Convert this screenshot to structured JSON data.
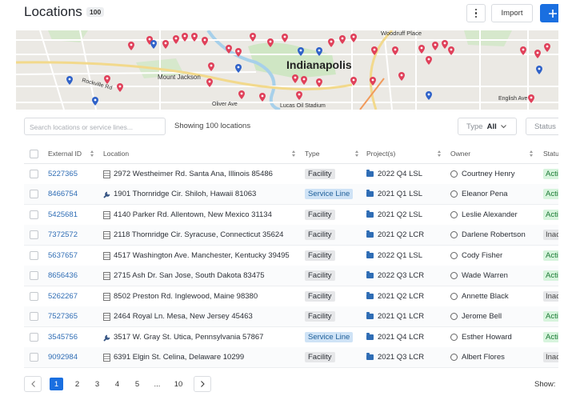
{
  "header": {
    "title": "Locations",
    "count": "100",
    "import_button": "Import"
  },
  "map": {
    "labels": {
      "city": "Indianapolis",
      "mount_jackson": "Mount Jackson",
      "rockville": "Rockville Rd",
      "woodruff": "Woodruff Place",
      "oliver": "Oliver Ave",
      "stadium": "Lucas Oil Stadium",
      "english": "English Ave"
    }
  },
  "toolbar": {
    "search_placeholder": "Search locations or service lines...",
    "summary": "Showing 100 locations",
    "type_filter": {
      "label": "Type",
      "value": "All"
    },
    "status_filter": {
      "label": "Status"
    }
  },
  "table": {
    "columns": [
      "External ID",
      "Location",
      "Type",
      "Project(s)",
      "Owner",
      "Status"
    ],
    "rows": [
      [
        "5227365",
        "2972 Westheimer Rd. Santa Ana, Illinois 85486",
        "Facility",
        "2022 Q4 LSL",
        "Courtney Henry",
        "Active"
      ],
      [
        "8466754",
        "1901 Thornridge Cir. Shiloh, Hawaii 81063",
        "Service Line",
        "2021 Q1 LSL",
        "Eleanor Pena",
        "Active"
      ],
      [
        "5425681",
        "4140 Parker Rd. Allentown, New Mexico 31134",
        "Facility",
        "2021 Q2 LSL",
        "Leslie Alexander",
        "Active"
      ],
      [
        "7372572",
        "2118 Thornridge Cir. Syracuse, Connecticut 35624",
        "Facility",
        "2021 Q2 LCR",
        "Darlene Robertson",
        "Inactive"
      ],
      [
        "5637657",
        "4517 Washington Ave. Manchester, Kentucky 39495",
        "Facility",
        "2022 Q1 LSL",
        "Cody Fisher",
        "Active"
      ],
      [
        "8656436",
        "2715 Ash Dr. San Jose, South Dakota 83475",
        "Facility",
        "2022 Q3 LCR",
        "Wade Warren",
        "Active"
      ],
      [
        "5262267",
        "8502 Preston Rd. Inglewood, Maine 98380",
        "Facility",
        "2021 Q2 LCR",
        "Annette Black",
        "Inactive"
      ],
      [
        "7527365",
        "2464 Royal Ln. Mesa, New Jersey 45463",
        "Facility",
        "2021 Q1 LCR",
        "Jerome Bell",
        "Active"
      ],
      [
        "3545756",
        "3517 W. Gray St. Utica, Pennsylvania 57867",
        "Service Line",
        "2021 Q4 LCR",
        "Esther Howard",
        "Active"
      ],
      [
        "9092984",
        "6391 Elgin St. Celina, Delaware 10299",
        "Facility",
        "2021 Q3 LCR",
        "Albert Flores",
        "Inactive"
      ]
    ]
  },
  "pagination": {
    "pages": [
      "1",
      "2",
      "3",
      "4",
      "5",
      "...",
      "10"
    ],
    "show_label": "Show:"
  }
}
